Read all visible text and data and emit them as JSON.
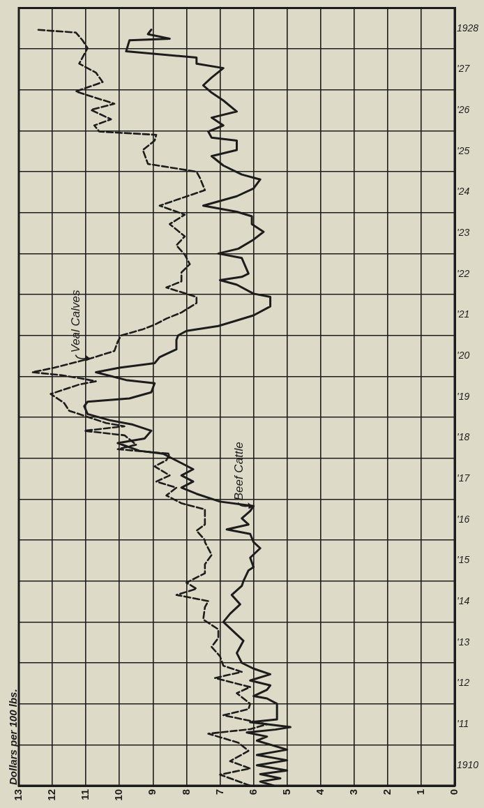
{
  "chart_data": {
    "type": "line",
    "orientation": "horizontal",
    "title": "Dollars per 100 lbs.",
    "xlim": [
      13,
      0
    ],
    "xticks": [
      0,
      1,
      2,
      3,
      4,
      5,
      6,
      7,
      8,
      9,
      10,
      11,
      12,
      13
    ],
    "ylim": [
      1909.5,
      1928.5
    ],
    "yticks": [
      {
        "value": 1909.5,
        "label": null
      },
      1910,
      {
        "value": 1910.5,
        "label": null
      },
      {
        "value": 1911,
        "label": "'11"
      },
      {
        "value": 1911.5,
        "label": null
      },
      {
        "value": 1912,
        "label": "'12"
      },
      {
        "value": 1912.5,
        "label": null
      },
      {
        "value": 1913,
        "label": "'13"
      },
      {
        "value": 1913.5,
        "label": null
      },
      {
        "value": 1914,
        "label": "'14"
      },
      {
        "value": 1914.5,
        "label": null
      },
      {
        "value": 1915,
        "label": "'15"
      },
      {
        "value": 1915.5,
        "label": null
      },
      {
        "value": 1916,
        "label": "'16"
      },
      {
        "value": 1916.5,
        "label": null
      },
      {
        "value": 1917,
        "label": "'17"
      },
      {
        "value": 1917.5,
        "label": null
      },
      {
        "value": 1918,
        "label": "'18"
      },
      {
        "value": 1918.5,
        "label": null
      },
      {
        "value": 1919,
        "label": "'19"
      },
      {
        "value": 1919.5,
        "label": null
      },
      {
        "value": 1920,
        "label": "'20"
      },
      {
        "value": 1920.5,
        "label": null
      },
      {
        "value": 1921,
        "label": "'21"
      },
      {
        "value": 1921.5,
        "label": null
      },
      {
        "value": 1922,
        "label": "'22"
      },
      {
        "value": 1922.5,
        "label": null
      },
      {
        "value": 1923,
        "label": "'23"
      },
      {
        "value": 1923.5,
        "label": null
      },
      {
        "value": 1924,
        "label": "'24"
      },
      {
        "value": 1924.5,
        "label": null
      },
      {
        "value": 1925,
        "label": "'25"
      },
      {
        "value": 1925.5,
        "label": null
      },
      {
        "value": 1926,
        "label": "'26"
      },
      {
        "value": 1926.5,
        "label": null
      },
      {
        "value": 1927,
        "label": "'27"
      },
      {
        "value": 1927.5,
        "label": null
      },
      1928,
      {
        "value": 1928.5,
        "label": null
      }
    ],
    "grid": true,
    "legend": false,
    "marker": "none",
    "series": [
      {
        "color": "#1c1c1c",
        "line_style": "solid",
        "x": [
          1909.5,
          1909.6,
          1909.68,
          1909.78,
          1909.87,
          1910.0,
          1910.12,
          1910.25,
          1910.38,
          1910.6,
          1910.7,
          1910.8,
          1910.87,
          1910.93,
          1911.05,
          1911.12,
          1911.5,
          1911.63,
          1911.69,
          1911.84,
          1911.95,
          1912.07,
          1912.22,
          1912.36,
          1912.5,
          1912.74,
          1913.04,
          1913.27,
          1913.5,
          1913.7,
          1913.93,
          1914.16,
          1914.38,
          1914.5,
          1914.76,
          1914.84,
          1915.07,
          1915.3,
          1915.45,
          1915.65,
          1915.76,
          1915.88,
          1916.03,
          1916.21,
          1916.33,
          1916.44,
          1916.63,
          1916.78,
          1916.93,
          1917.08,
          1917.23,
          1917.38,
          1917.61,
          1917.68,
          1917.87,
          1917.98,
          1918.17,
          1918.32,
          1918.43,
          1918.58,
          1918.77,
          1918.88,
          1918.96,
          1919.11,
          1919.33,
          1919.41,
          1919.6,
          1919.71,
          1919.82,
          1919.97,
          1920.16,
          1920.39,
          1920.5,
          1920.61,
          1920.73,
          1920.84,
          1920.99,
          1921.21,
          1921.44,
          1921.52,
          1921.74,
          1921.85,
          1921.93,
          1922.01,
          1922.39,
          1922.5,
          1922.62,
          1922.84,
          1923.03,
          1923.22,
          1923.41,
          1923.52,
          1923.67,
          1923.9,
          1924.09,
          1924.31,
          1924.43,
          1924.65,
          1924.88,
          1925.03,
          1925.26,
          1925.33,
          1925.48,
          1925.63,
          1925.82,
          1925.97,
          1926.24,
          1926.43,
          1926.61,
          1926.8,
          1927.03,
          1927.14,
          1927.29,
          1927.44,
          1927.71,
          1927.75,
          1927.86,
          1927.97
        ],
        "values": [
          5.4,
          5.8,
          5.2,
          5.8,
          5.0,
          5.9,
          5.0,
          5.9,
          5.0,
          5.9,
          5.6,
          6.2,
          5.35,
          4.9,
          6.1,
          5.3,
          5.3,
          5.6,
          6.0,
          5.6,
          5.5,
          6.1,
          5.5,
          6.0,
          6.35,
          6.5,
          6.3,
          6.6,
          6.9,
          6.7,
          6.4,
          6.65,
          6.35,
          6.3,
          6.15,
          6.0,
          6.1,
          5.8,
          6.0,
          6.1,
          6.8,
          6.15,
          6.35,
          6.1,
          6.0,
          7.0,
          7.7,
          8.15,
          7.8,
          8.15,
          7.8,
          8.15,
          8.7,
          9.4,
          10.05,
          9.25,
          9.05,
          9.6,
          10.3,
          10.95,
          11.05,
          10.95,
          9.7,
          9.05,
          8.95,
          9.8,
          10.7,
          10.0,
          8.95,
          8.8,
          8.3,
          8.3,
          8.25,
          8.0,
          7.05,
          6.6,
          6.0,
          5.5,
          5.5,
          6.0,
          6.5,
          7.0,
          6.35,
          6.15,
          6.35,
          7.05,
          6.45,
          6.0,
          5.7,
          6.05,
          6.05,
          6.5,
          7.5,
          6.5,
          6.0,
          5.8,
          6.35,
          6.9,
          7.25,
          6.5,
          6.5,
          7.25,
          7.35,
          6.9,
          7.25,
          6.5,
          6.9,
          7.25,
          7.5,
          7.25,
          6.9,
          7.7,
          7.7,
          9.8,
          9.7,
          8.5,
          9.15,
          9.05
        ]
      },
      {
        "color": "#1c1c1c",
        "line_style": "dashed",
        "x": [
          1909.5,
          1909.77,
          1909.92,
          1910.1,
          1910.35,
          1910.55,
          1910.77,
          1910.88,
          1911.0,
          1911.22,
          1911.37,
          1911.5,
          1911.76,
          1911.91,
          1912.13,
          1912.28,
          1912.43,
          1912.66,
          1912.89,
          1913.11,
          1913.32,
          1913.56,
          1913.86,
          1914.01,
          1914.16,
          1914.31,
          1914.46,
          1914.69,
          1914.91,
          1915.14,
          1915.45,
          1915.5,
          1915.73,
          1915.88,
          1916.25,
          1916.4,
          1916.59,
          1916.78,
          1916.93,
          1917.08,
          1917.3,
          1917.45,
          1917.61,
          1917.72,
          1917.83,
          1918.06,
          1918.17,
          1918.28,
          1918.36,
          1918.66,
          1918.85,
          1919.07,
          1919.3,
          1919.38,
          1919.45,
          1919.53,
          1919.6,
          1919.71,
          1919.94,
          1920.12,
          1920.35,
          1920.5,
          1920.65,
          1920.76,
          1920.91,
          1921.06,
          1921.29,
          1921.44,
          1921.67,
          1921.82,
          1922.04,
          1922.24,
          1922.47,
          1922.7,
          1922.92,
          1923.22,
          1923.45,
          1923.67,
          1924.05,
          1924.35,
          1924.5,
          1924.69,
          1925.03,
          1925.26,
          1925.4,
          1925.48,
          1925.63,
          1925.78,
          1926.01,
          1926.16,
          1926.46,
          1926.69,
          1926.92,
          1927.14,
          1927.52,
          1927.71,
          1927.9,
          1927.97
        ],
        "values": [
          6.1,
          7.0,
          6.1,
          6.7,
          6.15,
          6.45,
          7.35,
          6.1,
          5.6,
          6.9,
          6.15,
          6.1,
          6.5,
          6.1,
          7.15,
          6.35,
          6.9,
          7.0,
          7.25,
          7.05,
          7.05,
          7.5,
          7.45,
          7.35,
          8.3,
          7.7,
          8.0,
          7.45,
          7.45,
          7.25,
          7.45,
          7.45,
          7.7,
          7.45,
          7.45,
          8.15,
          8.6,
          8.3,
          8.9,
          8.5,
          8.95,
          8.6,
          8.5,
          10.05,
          9.5,
          9.85,
          11.05,
          9.85,
          10.4,
          11.5,
          11.65,
          12.05,
          11.2,
          10.7,
          11.15,
          11.75,
          12.6,
          11.95,
          10.85,
          10.15,
          10.05,
          9.95,
          9.3,
          8.95,
          8.6,
          8.15,
          7.7,
          7.7,
          8.6,
          8.15,
          8.15,
          7.9,
          8.05,
          8.3,
          8.05,
          8.5,
          8.05,
          8.8,
          7.45,
          7.6,
          7.7,
          9.15,
          9.3,
          8.95,
          8.9,
          10.6,
          10.75,
          10.25,
          10.85,
          10.15,
          11.3,
          10.5,
          10.7,
          11.2,
          10.95,
          11.1,
          11.3,
          12.5
        ]
      }
    ],
    "annotations": [
      {
        "text": "Veal Calves",
        "x": 10.85,
        "y": 1919.94
      },
      {
        "text": "Beef Cattle",
        "x": 6.0,
        "y": 1916.33
      }
    ]
  }
}
